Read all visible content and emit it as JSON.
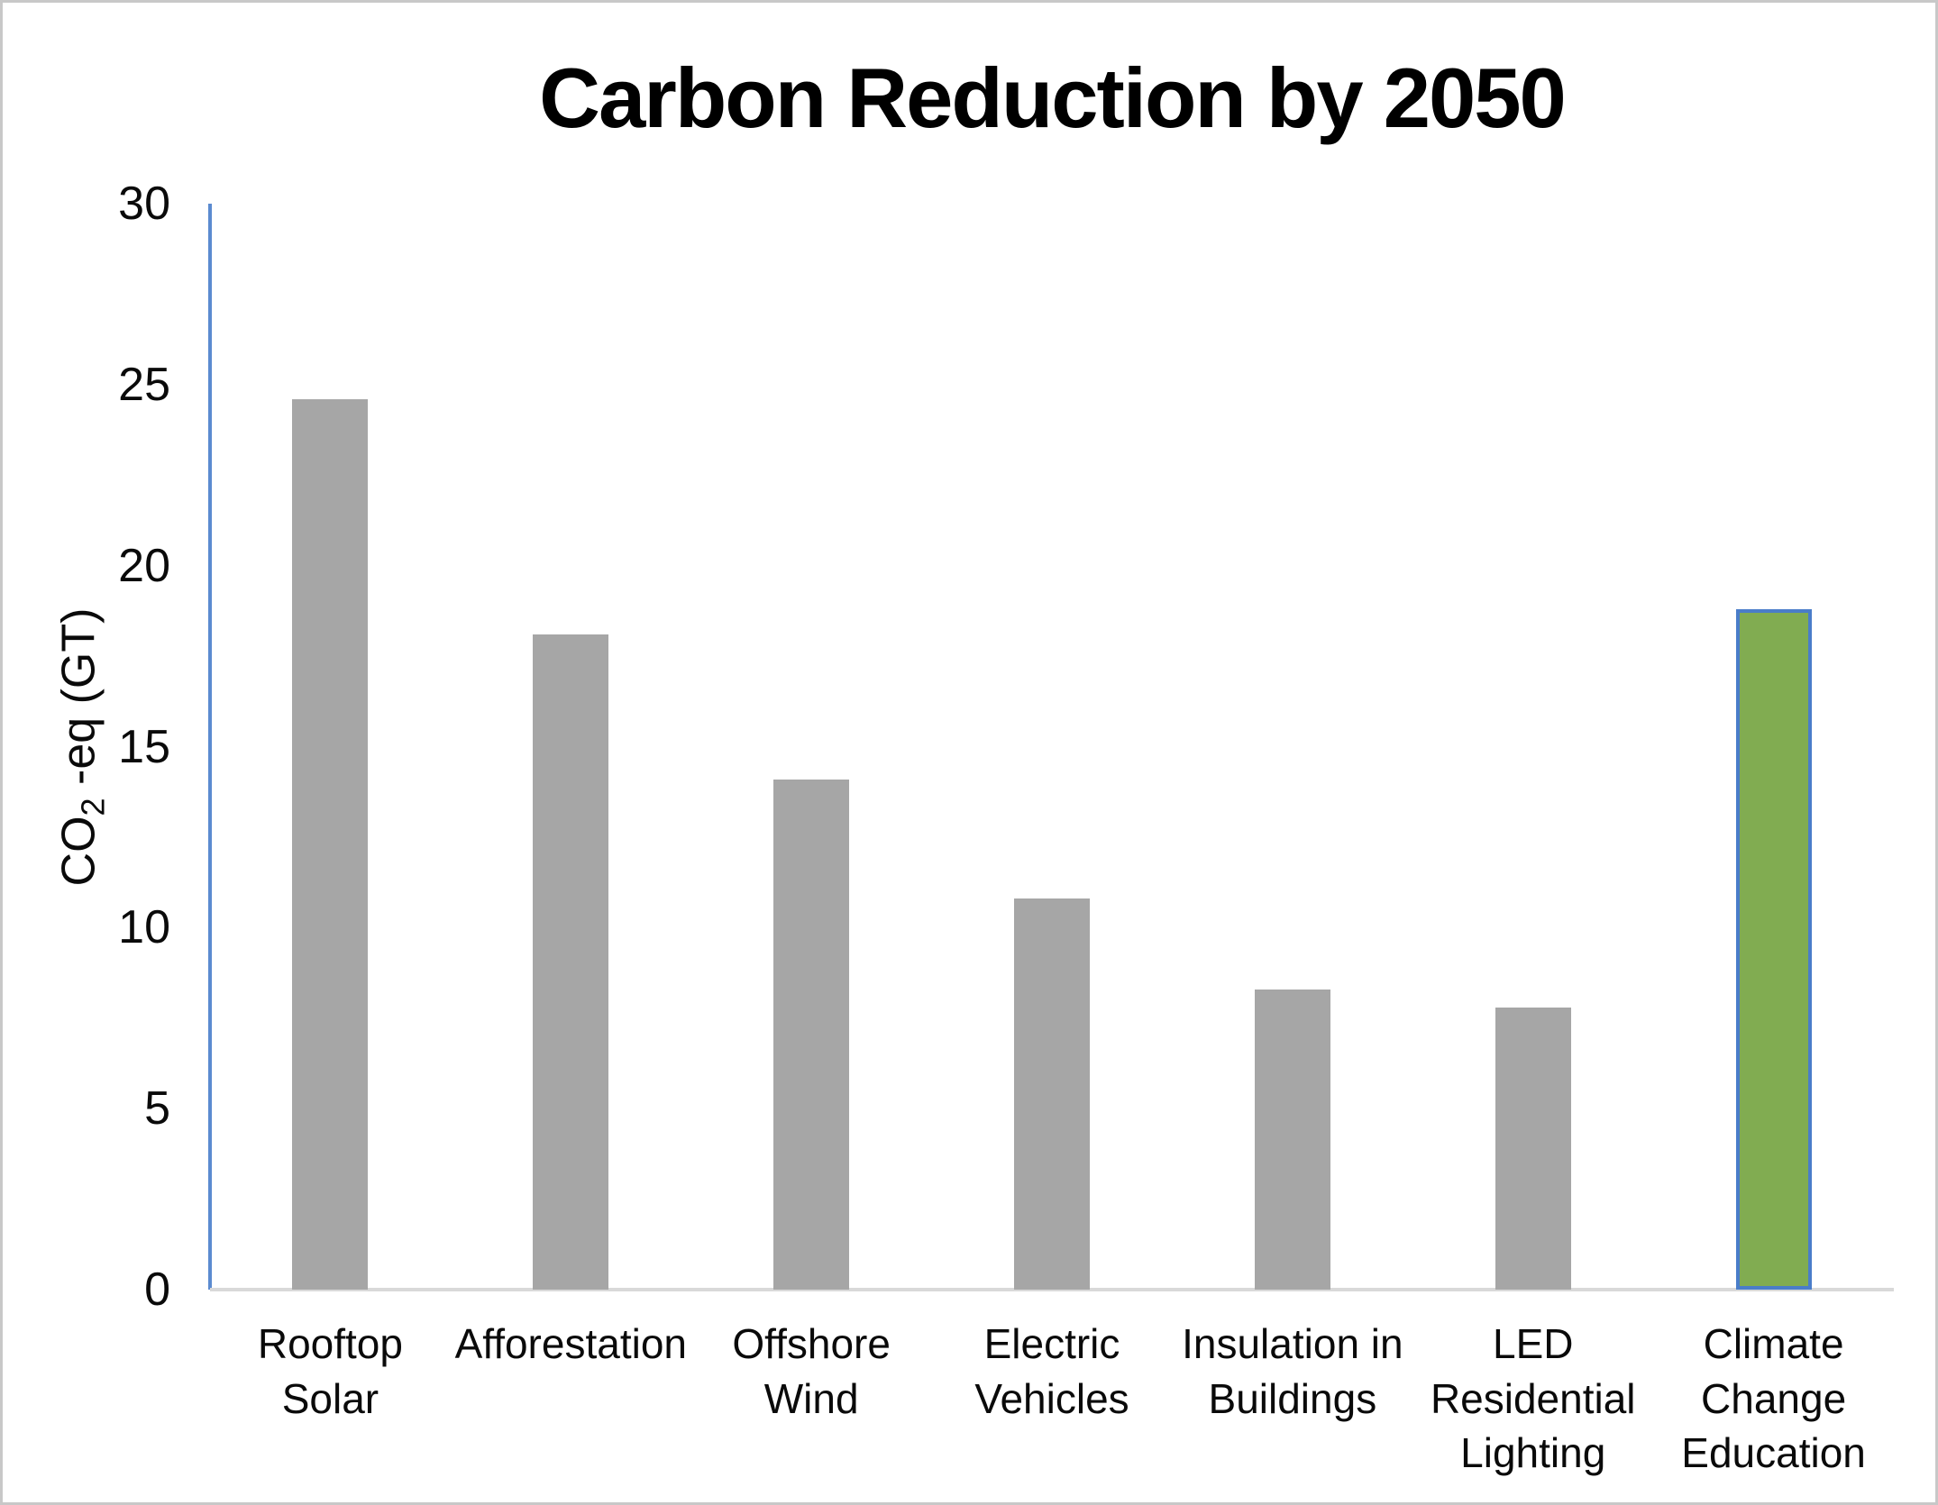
{
  "chart_data": {
    "type": "bar",
    "title": "Carbon Reduction by 2050",
    "ylabel": "CO2 -eq (GT)",
    "ylabel_parts": {
      "prefix": "CO",
      "sub": "2",
      "suffix": " -eq (GT)"
    },
    "xlabel": "",
    "categories": [
      "Rooftop Solar",
      "Afforestation",
      "Offshore Wind",
      "Electric Vehicles",
      "Insulation in Buildings",
      "LED Residential Lighting",
      "Climate Change Education"
    ],
    "category_lines": [
      [
        "Rooftop",
        "Solar"
      ],
      [
        "Afforestation"
      ],
      [
        "Offshore",
        "Wind"
      ],
      [
        "Electric",
        "Vehicles"
      ],
      [
        "Insulation in",
        "Buildings"
      ],
      [
        "LED",
        "Residential",
        "Lighting"
      ],
      [
        "Climate",
        "Change",
        "Education"
      ]
    ],
    "values": [
      24.6,
      18.1,
      14.1,
      10.8,
      8.3,
      7.8,
      18.8
    ],
    "y_ticks": [
      0,
      5,
      10,
      15,
      20,
      25,
      30
    ],
    "ylim": [
      0,
      30
    ],
    "grid": false,
    "legend": false,
    "colors": {
      "bar_fill": "#a6a6a6",
      "highlight_fill": "#81ac51",
      "highlight_border": "#4a7dc9",
      "axis_line": "#5b8bd0",
      "baseline": "#d9d9d9",
      "text": "#0a0a0a"
    },
    "highlight_index": 6
  }
}
